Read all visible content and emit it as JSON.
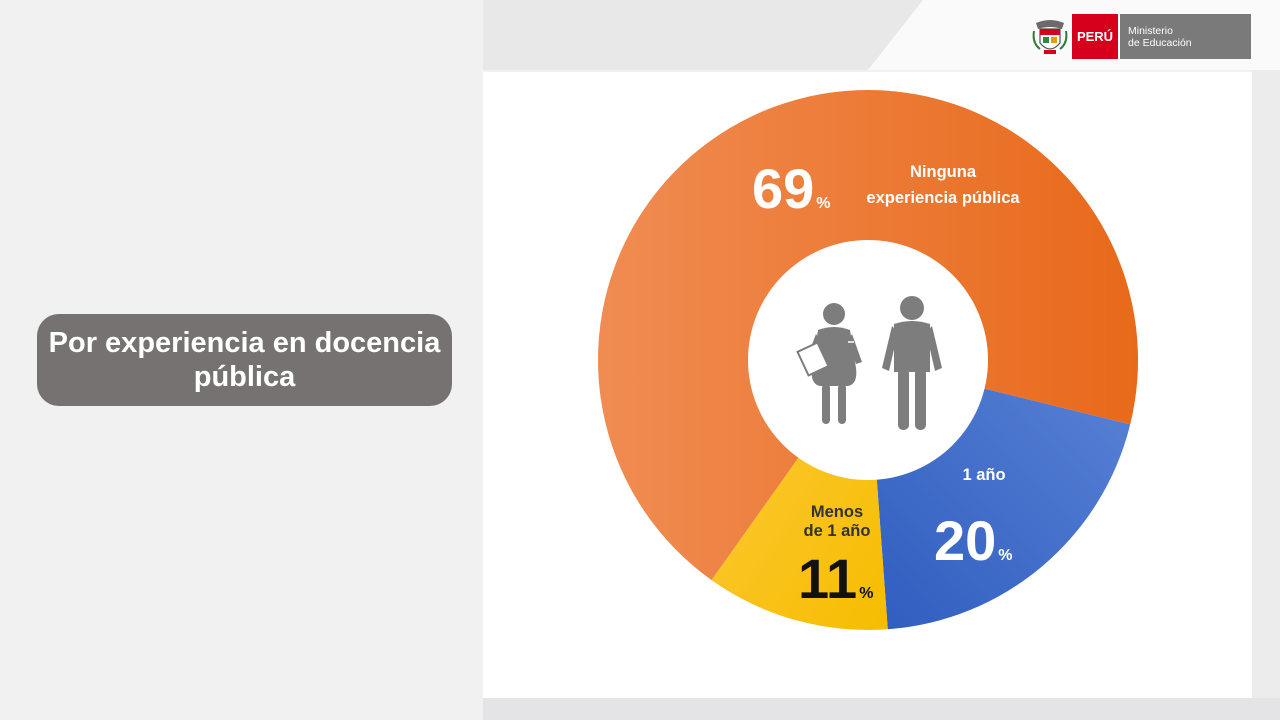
{
  "header": {
    "country": "PERÚ",
    "ministry_line1": "Ministerio",
    "ministry_line2": "de Educación"
  },
  "title": "Por experiencia en docencia pública",
  "chart_data": {
    "type": "pie",
    "title": "Por experiencia en docencia pública",
    "slices": [
      {
        "label": "Ninguna experiencia pública",
        "value": 69,
        "color": "#ec7126"
      },
      {
        "label": "1 año",
        "value": 20,
        "color": "#3f6cc6"
      },
      {
        "label": "Menos de 1 año",
        "value": 11,
        "color": "#fbc512"
      }
    ],
    "unit": "%",
    "donut": true,
    "center_icon": "teacher-figures-icon"
  },
  "labels": {
    "ninguna": {
      "value": "69",
      "unit": "%",
      "line1": "Ninguna",
      "line2": "experiencia pública"
    },
    "un_anio": {
      "value": "20",
      "unit": "%",
      "line1": "1 año"
    },
    "menos": {
      "value": "11",
      "unit": "%",
      "line1": "Menos",
      "line2": "de 1 año"
    }
  }
}
